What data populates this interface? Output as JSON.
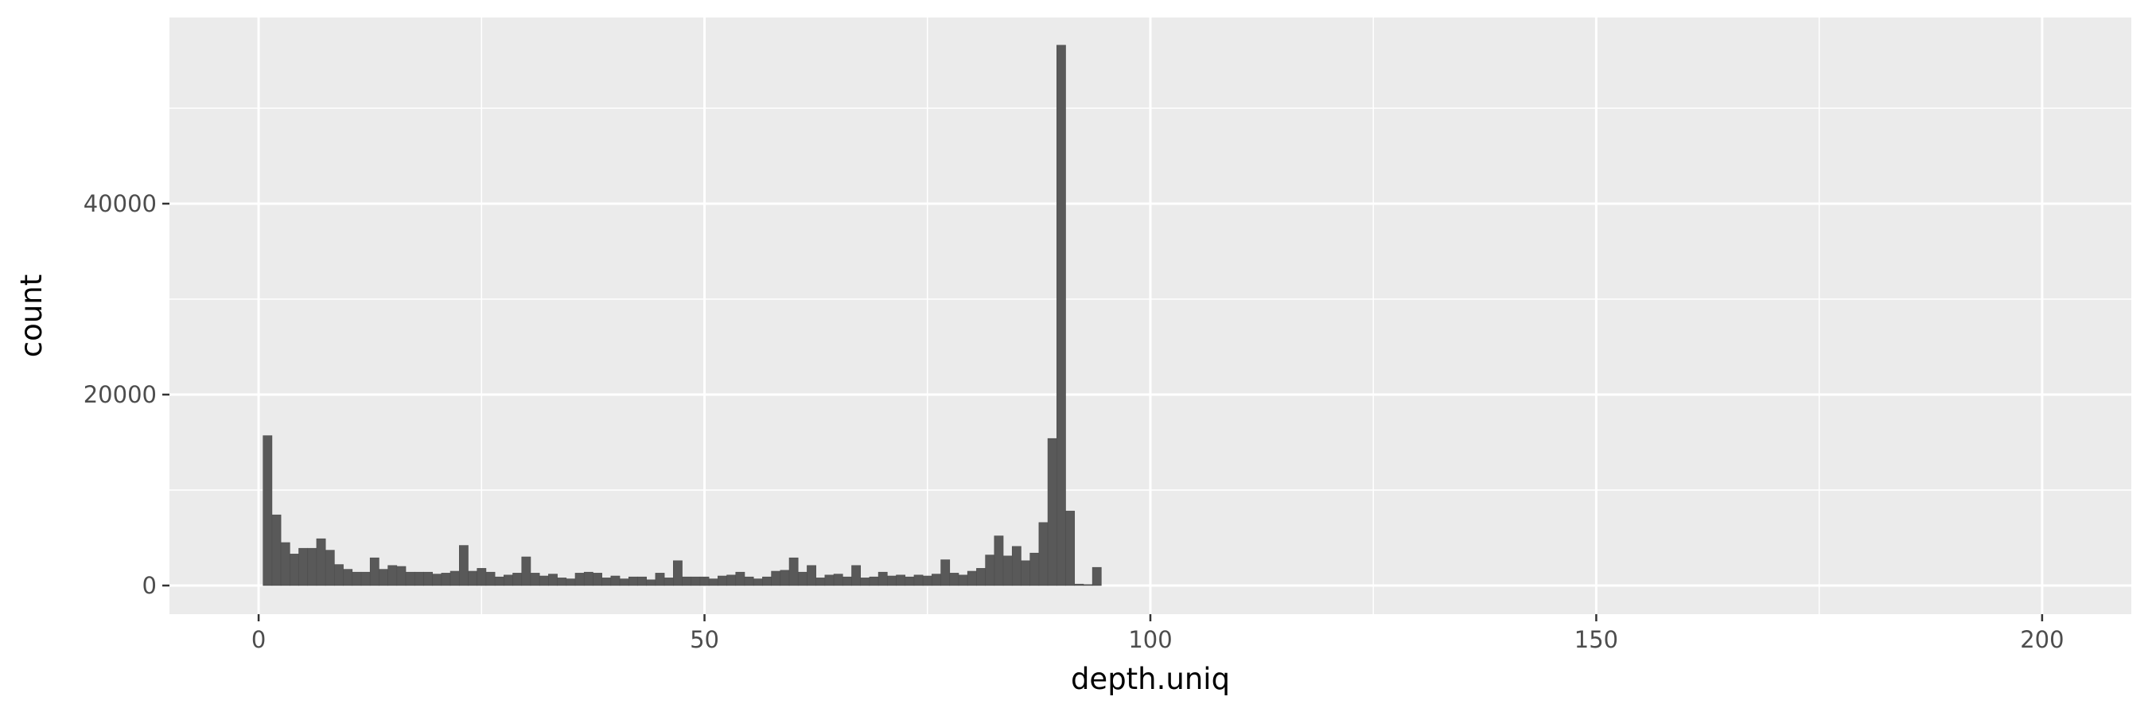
{
  "chart_data": {
    "type": "bar",
    "subtype": "histogram",
    "title": "",
    "xlabel": "depth.uniq",
    "ylabel": "count",
    "xlim": [
      -10,
      210
    ],
    "ylim": [
      -3000,
      59500
    ],
    "x_ticks": [
      0,
      50,
      100,
      150,
      200
    ],
    "x_tick_labels": [
      "0",
      "50",
      "100",
      "150",
      "200"
    ],
    "y_ticks": [
      0,
      20000,
      40000
    ],
    "y_tick_labels": [
      "0",
      "20000",
      "40000"
    ],
    "bin_width": 1,
    "grid": true,
    "legend": "none",
    "colors": {
      "panel": "#ebebeb",
      "grid": "#ffffff",
      "bar": "#595959",
      "bar_outline": "#4d4d4d"
    },
    "bins": [
      [
        1,
        15700
      ],
      [
        2,
        7400
      ],
      [
        3,
        4500
      ],
      [
        4,
        3300
      ],
      [
        5,
        3900
      ],
      [
        6,
        3900
      ],
      [
        7,
        4900
      ],
      [
        8,
        3700
      ],
      [
        9,
        2200
      ],
      [
        10,
        1700
      ],
      [
        11,
        1400
      ],
      [
        12,
        1400
      ],
      [
        13,
        2900
      ],
      [
        14,
        1700
      ],
      [
        15,
        2100
      ],
      [
        16,
        2000
      ],
      [
        17,
        1400
      ],
      [
        18,
        1400
      ],
      [
        19,
        1400
      ],
      [
        20,
        1200
      ],
      [
        21,
        1300
      ],
      [
        22,
        1500
      ],
      [
        23,
        4200
      ],
      [
        24,
        1500
      ],
      [
        25,
        1800
      ],
      [
        26,
        1400
      ],
      [
        27,
        900
      ],
      [
        28,
        1100
      ],
      [
        29,
        1300
      ],
      [
        30,
        3000
      ],
      [
        31,
        1300
      ],
      [
        32,
        1000
      ],
      [
        33,
        1200
      ],
      [
        34,
        800
      ],
      [
        35,
        700
      ],
      [
        36,
        1300
      ],
      [
        37,
        1400
      ],
      [
        38,
        1300
      ],
      [
        39,
        800
      ],
      [
        40,
        1000
      ],
      [
        41,
        700
      ],
      [
        42,
        900
      ],
      [
        43,
        900
      ],
      [
        44,
        600
      ],
      [
        45,
        1300
      ],
      [
        46,
        800
      ],
      [
        47,
        2600
      ],
      [
        48,
        900
      ],
      [
        49,
        900
      ],
      [
        50,
        900
      ],
      [
        51,
        700
      ],
      [
        52,
        1000
      ],
      [
        53,
        1100
      ],
      [
        54,
        1400
      ],
      [
        55,
        900
      ],
      [
        56,
        700
      ],
      [
        57,
        900
      ],
      [
        58,
        1500
      ],
      [
        59,
        1600
      ],
      [
        60,
        2900
      ],
      [
        61,
        1400
      ],
      [
        62,
        2100
      ],
      [
        63,
        800
      ],
      [
        64,
        1100
      ],
      [
        65,
        1200
      ],
      [
        66,
        900
      ],
      [
        67,
        2100
      ],
      [
        68,
        800
      ],
      [
        69,
        900
      ],
      [
        70,
        1400
      ],
      [
        71,
        1000
      ],
      [
        72,
        1100
      ],
      [
        73,
        900
      ],
      [
        74,
        1100
      ],
      [
        75,
        1000
      ],
      [
        76,
        1200
      ],
      [
        77,
        2700
      ],
      [
        78,
        1300
      ],
      [
        79,
        1100
      ],
      [
        80,
        1500
      ],
      [
        81,
        1800
      ],
      [
        82,
        3200
      ],
      [
        83,
        5200
      ],
      [
        84,
        3100
      ],
      [
        85,
        4100
      ],
      [
        86,
        2600
      ],
      [
        87,
        3400
      ],
      [
        88,
        6600
      ],
      [
        89,
        15400
      ],
      [
        90,
        56600
      ],
      [
        91,
        7800
      ],
      [
        92,
        150
      ],
      [
        93,
        100
      ],
      [
        94,
        1900
      ]
    ]
  }
}
